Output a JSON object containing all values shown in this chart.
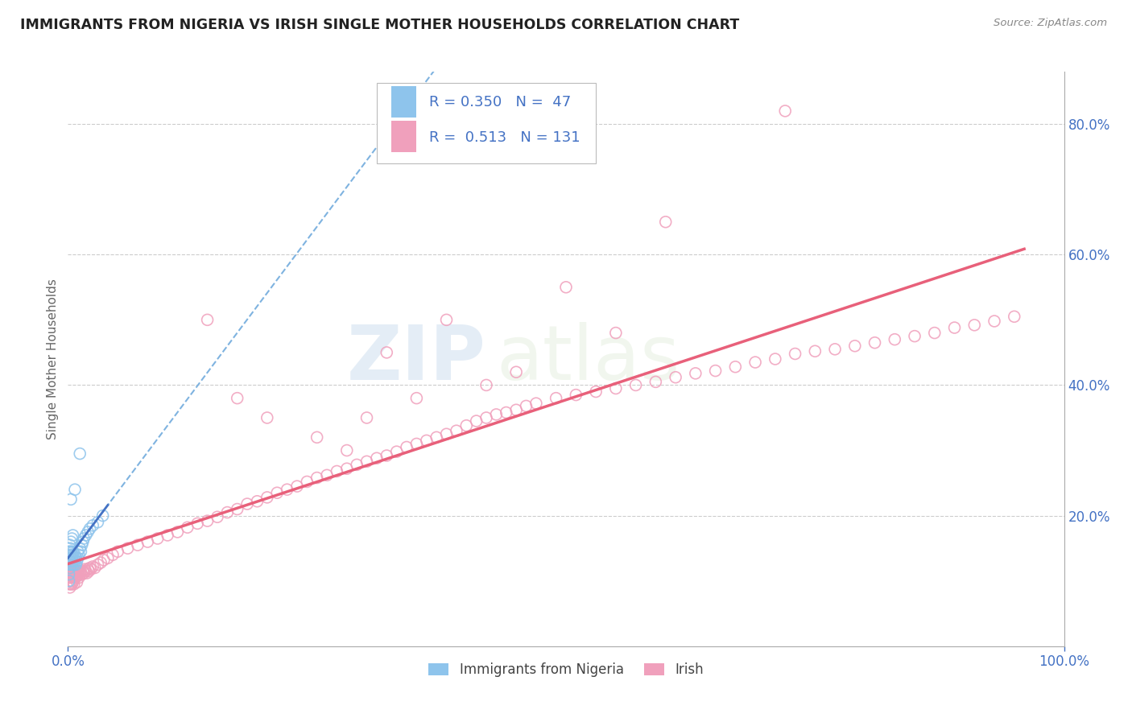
{
  "title": "IMMIGRANTS FROM NIGERIA VS IRISH SINGLE MOTHER HOUSEHOLDS CORRELATION CHART",
  "source": "Source: ZipAtlas.com",
  "ylabel": "Single Mother Households",
  "xlim": [
    0,
    1.0
  ],
  "ylim": [
    0,
    0.88
  ],
  "ytick_vals": [
    0.2,
    0.4,
    0.6,
    0.8
  ],
  "ytick_labels": [
    "20.0%",
    "40.0%",
    "60.0%",
    "80.0%"
  ],
  "watermark_zip": "ZIP",
  "watermark_atlas": "atlas",
  "blue_color": "#8EC4EC",
  "pink_color": "#F0A0BC",
  "blue_solid_color": "#4472C4",
  "blue_dash_color": "#7FB3E0",
  "pink_line_color": "#E8607A",
  "background_color": "#FFFFFF",
  "grid_color": "#CCCCCC",
  "blue_x": [
    0.001,
    0.001,
    0.001,
    0.002,
    0.002,
    0.002,
    0.002,
    0.003,
    0.003,
    0.003,
    0.003,
    0.004,
    0.004,
    0.004,
    0.005,
    0.005,
    0.005,
    0.006,
    0.006,
    0.007,
    0.007,
    0.008,
    0.008,
    0.009,
    0.01,
    0.01,
    0.011,
    0.012,
    0.013,
    0.014,
    0.015,
    0.016,
    0.018,
    0.02,
    0.022,
    0.025,
    0.03,
    0.035,
    0.002,
    0.003,
    0.004,
    0.005,
    0.012,
    0.007,
    0.003,
    0.001,
    0.001
  ],
  "blue_y": [
    0.135,
    0.125,
    0.145,
    0.13,
    0.14,
    0.12,
    0.15,
    0.135,
    0.125,
    0.145,
    0.13,
    0.14,
    0.125,
    0.135,
    0.13,
    0.14,
    0.145,
    0.135,
    0.125,
    0.13,
    0.14,
    0.135,
    0.125,
    0.13,
    0.135,
    0.145,
    0.14,
    0.15,
    0.145,
    0.155,
    0.16,
    0.165,
    0.17,
    0.175,
    0.18,
    0.185,
    0.19,
    0.2,
    0.155,
    0.16,
    0.165,
    0.17,
    0.295,
    0.24,
    0.225,
    0.11,
    0.1
  ],
  "pink_x": [
    0.001,
    0.001,
    0.001,
    0.001,
    0.002,
    0.002,
    0.002,
    0.002,
    0.002,
    0.003,
    0.003,
    0.003,
    0.003,
    0.003,
    0.004,
    0.004,
    0.004,
    0.004,
    0.005,
    0.005,
    0.005,
    0.005,
    0.006,
    0.006,
    0.006,
    0.007,
    0.007,
    0.008,
    0.008,
    0.009,
    0.009,
    0.01,
    0.01,
    0.011,
    0.011,
    0.012,
    0.013,
    0.014,
    0.015,
    0.016,
    0.017,
    0.018,
    0.019,
    0.02,
    0.021,
    0.022,
    0.023,
    0.025,
    0.027,
    0.03,
    0.033,
    0.036,
    0.04,
    0.045,
    0.05,
    0.06,
    0.07,
    0.08,
    0.09,
    0.1,
    0.11,
    0.12,
    0.13,
    0.14,
    0.15,
    0.16,
    0.17,
    0.18,
    0.19,
    0.2,
    0.21,
    0.22,
    0.23,
    0.24,
    0.25,
    0.26,
    0.27,
    0.28,
    0.29,
    0.3,
    0.31,
    0.32,
    0.33,
    0.34,
    0.35,
    0.36,
    0.37,
    0.38,
    0.39,
    0.4,
    0.41,
    0.42,
    0.43,
    0.44,
    0.45,
    0.46,
    0.47,
    0.49,
    0.51,
    0.53,
    0.55,
    0.57,
    0.59,
    0.61,
    0.63,
    0.65,
    0.67,
    0.69,
    0.71,
    0.73,
    0.75,
    0.77,
    0.79,
    0.81,
    0.83,
    0.85,
    0.87,
    0.89,
    0.91,
    0.93,
    0.95,
    0.002,
    0.003,
    0.004,
    0.005,
    0.006,
    0.007,
    0.008,
    0.009,
    0.01
  ],
  "pink_y": [
    0.105,
    0.115,
    0.095,
    0.125,
    0.11,
    0.1,
    0.12,
    0.09,
    0.13,
    0.105,
    0.115,
    0.095,
    0.125,
    0.108,
    0.1,
    0.115,
    0.095,
    0.12,
    0.108,
    0.118,
    0.098,
    0.112,
    0.105,
    0.115,
    0.095,
    0.108,
    0.118,
    0.105,
    0.115,
    0.108,
    0.098,
    0.11,
    0.12,
    0.105,
    0.115,
    0.11,
    0.115,
    0.11,
    0.115,
    0.112,
    0.118,
    0.115,
    0.112,
    0.118,
    0.115,
    0.12,
    0.118,
    0.122,
    0.12,
    0.125,
    0.128,
    0.132,
    0.135,
    0.14,
    0.145,
    0.15,
    0.155,
    0.16,
    0.165,
    0.17,
    0.175,
    0.182,
    0.188,
    0.192,
    0.198,
    0.205,
    0.21,
    0.218,
    0.222,
    0.228,
    0.235,
    0.24,
    0.245,
    0.252,
    0.258,
    0.262,
    0.268,
    0.272,
    0.278,
    0.283,
    0.288,
    0.292,
    0.298,
    0.305,
    0.31,
    0.315,
    0.32,
    0.325,
    0.33,
    0.338,
    0.345,
    0.35,
    0.355,
    0.358,
    0.362,
    0.368,
    0.372,
    0.38,
    0.385,
    0.39,
    0.395,
    0.4,
    0.405,
    0.412,
    0.418,
    0.422,
    0.428,
    0.435,
    0.44,
    0.448,
    0.452,
    0.455,
    0.46,
    0.465,
    0.47,
    0.475,
    0.48,
    0.488,
    0.492,
    0.498,
    0.505,
    0.12,
    0.108,
    0.115,
    0.112,
    0.118,
    0.115,
    0.112,
    0.108,
    0.115
  ],
  "pink_outliers_x": [
    0.72,
    0.6,
    0.5,
    0.38,
    0.55,
    0.45,
    0.35,
    0.3,
    0.25,
    0.2,
    0.17,
    0.14,
    0.32,
    0.42,
    0.28
  ],
  "pink_outliers_y": [
    0.82,
    0.65,
    0.55,
    0.5,
    0.48,
    0.42,
    0.38,
    0.35,
    0.32,
    0.35,
    0.38,
    0.5,
    0.45,
    0.4,
    0.3
  ]
}
